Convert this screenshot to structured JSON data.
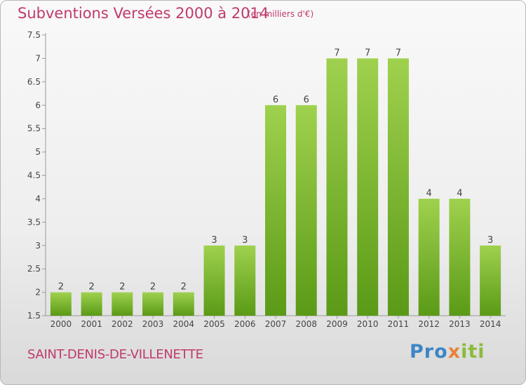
{
  "header": {
    "title": "Subventions Versées 2000 à 2014",
    "subtitle": "(en milliers d'€)"
  },
  "commune": "SAINT-DENIS-DE-VILLENETTE",
  "logo": {
    "text": "Proxiti",
    "colors": [
      "#3d86c6",
      "#e8833a",
      "#8bbb3a"
    ]
  },
  "colors": {
    "bar_top": "#9fd14e",
    "bar_bottom": "#5a9a16",
    "title": "#c0396c"
  },
  "chart_data": {
    "type": "bar",
    "title": "Subventions Versées 2000 à 2014",
    "subtitle": "(en milliers d'€)",
    "categories": [
      "2000",
      "2001",
      "2002",
      "2003",
      "2004",
      "2005",
      "2006",
      "2007",
      "2008",
      "2009",
      "2010",
      "2011",
      "2012",
      "2013",
      "2014"
    ],
    "values": [
      2,
      2,
      2,
      2,
      2,
      3,
      3,
      6,
      6,
      7,
      7,
      7,
      4,
      4,
      3
    ],
    "data_labels": [
      "2",
      "2",
      "2",
      "2",
      "2",
      "3",
      "3",
      "6",
      "6",
      "7",
      "7",
      "7",
      "4",
      "4",
      "3"
    ],
    "ylim": [
      1.5,
      7.5
    ],
    "yticks": [
      1.5,
      2,
      2.5,
      3,
      3.5,
      4,
      4.5,
      5,
      5.5,
      6,
      6.5,
      7,
      7.5
    ],
    "ytick_labels": [
      "1.5",
      "2",
      "2.5",
      "3",
      "3.5",
      "4",
      "4.5",
      "5",
      "5.5",
      "6",
      "6.5",
      "7",
      "7.5"
    ],
    "grid": false,
    "legend": "none"
  }
}
